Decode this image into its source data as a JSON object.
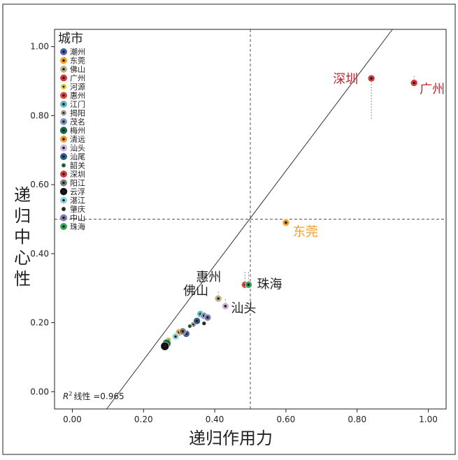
{
  "chart_data": {
    "type": "scatter",
    "xlabel": "递归作用力",
    "ylabel": "递归中心性",
    "xlim": [
      -0.05,
      1.05
    ],
    "ylim": [
      -0.05,
      1.05
    ],
    "x_ticks": [
      0.0,
      0.2,
      0.4,
      0.6,
      0.8,
      1.0
    ],
    "y_ticks": [
      0.0,
      0.2,
      0.4,
      0.6,
      0.8,
      1.0
    ],
    "x_tick_labels": [
      "0.00",
      "0.20",
      "0.40",
      "0.60",
      "0.80",
      "1.00"
    ],
    "y_tick_labels": [
      "0.00",
      "0.20",
      "0.40",
      "0.60",
      "0.80",
      "1.00"
    ],
    "reference_lines": {
      "x": 0.5,
      "y": 0.5,
      "style": "dashed"
    },
    "fit_line": {
      "intercept": -0.182,
      "slope": 1.37
    },
    "r2_text": "线性 =0.965",
    "r2_symbol": "R",
    "r2_sup": "2",
    "legend_title": "城市",
    "legend_position": "top-left",
    "points": [
      {
        "name": "潮州",
        "x": 0.32,
        "y": 0.168,
        "color": "#4a5fa8",
        "size": 5
      },
      {
        "name": "东莞",
        "x": 0.6,
        "y": 0.49,
        "color": "#f1a02b",
        "size": 5,
        "label": "东莞",
        "label_color": "#f1a02b"
      },
      {
        "name": "佛山",
        "x": 0.41,
        "y": 0.27,
        "color": "#bfb28a",
        "size": 5,
        "label": "佛山",
        "label_color": "#222222"
      },
      {
        "name": "广州",
        "x": 0.96,
        "y": 0.895,
        "color": "#d63a3f",
        "size": 5,
        "label": "广州",
        "label_color": "#c8262e"
      },
      {
        "name": "河源",
        "x": 0.27,
        "y": 0.15,
        "color": "#d6cc3a",
        "size": 4
      },
      {
        "name": "惠州",
        "x": 0.485,
        "y": 0.31,
        "color": "#e0473c",
        "size": 5,
        "label": "惠州",
        "label_color": "#222222"
      },
      {
        "name": "江门",
        "x": 0.36,
        "y": 0.225,
        "color": "#69b7c3",
        "size": 5
      },
      {
        "name": "揭阳",
        "x": 0.34,
        "y": 0.195,
        "color": "#9d9d9d",
        "size": 4
      },
      {
        "name": "茂名",
        "x": 0.37,
        "y": 0.22,
        "color": "#7d96c6",
        "size": 5
      },
      {
        "name": "梅州",
        "x": 0.265,
        "y": 0.14,
        "color": "#1d6b4a",
        "size": 6
      },
      {
        "name": "清远",
        "x": 0.3,
        "y": 0.172,
        "color": "#f19a35",
        "size": 5
      },
      {
        "name": "汕头",
        "x": 0.43,
        "y": 0.248,
        "color": "#c8b4d8",
        "size": 5,
        "label": "汕头",
        "label_color": "#222222"
      },
      {
        "name": "汕尾",
        "x": 0.35,
        "y": 0.205,
        "color": "#2e5f86",
        "size": 5
      },
      {
        "name": "韶关",
        "x": 0.33,
        "y": 0.19,
        "color": "#2f6d3d",
        "size": 3
      },
      {
        "name": "深圳",
        "x": 0.84,
        "y": 0.908,
        "color": "#d63a3f",
        "size": 5,
        "label": "深圳",
        "label_color": "#c8262e"
      },
      {
        "name": "阳江",
        "x": 0.31,
        "y": 0.175,
        "color": "#7d7d7d",
        "size": 5
      },
      {
        "name": "云浮",
        "x": 0.26,
        "y": 0.132,
        "color": "#111111",
        "size": 6
      },
      {
        "name": "湛江",
        "x": 0.29,
        "y": 0.16,
        "color": "#8fd6df",
        "size": 5
      },
      {
        "name": "肇庆",
        "x": 0.37,
        "y": 0.198,
        "color": "#333333",
        "size": 3
      },
      {
        "name": "中山",
        "x": 0.38,
        "y": 0.215,
        "color": "#7a7fb0",
        "size": 5
      },
      {
        "name": "珠海",
        "x": 0.495,
        "y": 0.31,
        "color": "#3aa35b",
        "size": 5,
        "label": "珠海",
        "label_color": "#222222"
      }
    ]
  }
}
